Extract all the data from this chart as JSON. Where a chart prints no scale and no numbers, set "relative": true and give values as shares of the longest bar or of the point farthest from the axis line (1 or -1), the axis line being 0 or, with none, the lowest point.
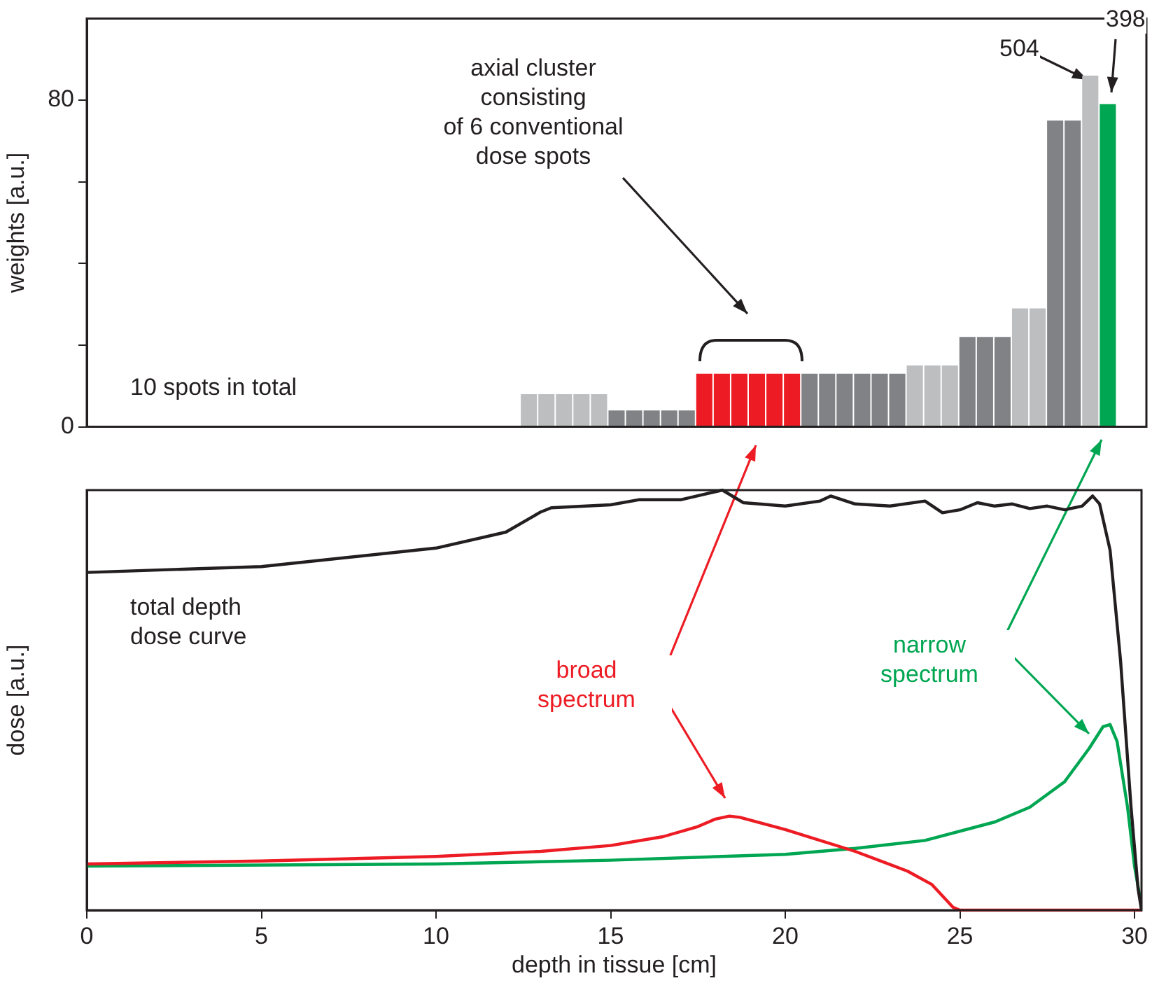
{
  "chart_data": [
    {
      "type": "bar",
      "ylabel": "weights [a.u.]",
      "x": [
        12.6,
        13.1,
        13.6,
        14.1,
        14.6,
        15.1,
        15.6,
        16.1,
        16.6,
        17.1,
        17.6,
        18.1,
        18.6,
        19.1,
        19.6,
        20.1,
        20.6,
        21.1,
        21.6,
        22.1,
        22.6,
        23.1,
        23.6,
        24.1,
        24.6,
        25.1,
        25.6,
        26.1,
        26.6,
        27.1,
        27.6,
        28.1,
        28.6,
        29.1
      ],
      "values": [
        8,
        8,
        8,
        8,
        8,
        4,
        4,
        4,
        4,
        4,
        13,
        13,
        13,
        13,
        13,
        13,
        13,
        13,
        13,
        13,
        13,
        13,
        15,
        15,
        15,
        22,
        22,
        22,
        29,
        29,
        75,
        75,
        86,
        79
      ],
      "colors": [
        "#bcbec0",
        "#bcbec0",
        "#bcbec0",
        "#bcbec0",
        "#bcbec0",
        "#808285",
        "#808285",
        "#808285",
        "#808285",
        "#808285",
        "#ed1c24",
        "#ed1c24",
        "#ed1c24",
        "#ed1c24",
        "#ed1c24",
        "#ed1c24",
        "#808285",
        "#808285",
        "#808285",
        "#808285",
        "#808285",
        "#808285",
        "#bcbec0",
        "#bcbec0",
        "#bcbec0",
        "#808285",
        "#808285",
        "#808285",
        "#bcbec0",
        "#bcbec0",
        "#808285",
        "#808285",
        "#bcbec0",
        "#00a651"
      ],
      "xlim": [
        0,
        30.2
      ],
      "ylim": [
        0,
        100
      ],
      "yticks": [
        0,
        {
          "value": 20,
          "label": null
        },
        {
          "value": 40,
          "label": null
        },
        {
          "value": 60,
          "label": null
        },
        80
      ],
      "tick_labels": "y",
      "annotations": [
        "axial cluster\nconsisting\nof 6 conventional\ndose spots",
        "10 spots in total",
        "504",
        "398"
      ]
    },
    {
      "type": "line",
      "xlabel": "depth in tissue [cm]",
      "ylabel": "dose [a.u.]",
      "relative": true,
      "xlim": [
        0,
        30.2
      ],
      "xticks": [
        0,
        5,
        10,
        15,
        20,
        25,
        30
      ],
      "marker": "none",
      "line_style": "solid",
      "series": [
        {
          "name": "total depth\ndose curve",
          "color": "#231f20",
          "x": [
            0,
            5,
            10,
            12,
            13,
            13.3,
            15,
            15.8,
            17,
            18.2,
            18.8,
            20,
            21,
            21.3,
            22,
            23,
            24,
            24.5,
            25,
            25.5,
            26,
            26.5,
            27,
            27.5,
            28,
            28.5,
            28.8,
            29,
            29.3,
            29.6,
            29.9,
            30.1,
            30.2
          ],
          "values": [
            0.804,
            0.818,
            0.862,
            0.9,
            0.948,
            0.958,
            0.965,
            0.977,
            0.977,
            1.0,
            0.97,
            0.962,
            0.974,
            0.986,
            0.967,
            0.962,
            0.974,
            0.946,
            0.953,
            0.97,
            0.962,
            0.967,
            0.956,
            0.962,
            0.953,
            0.962,
            0.986,
            0.967,
            0.857,
            0.594,
            0.245,
            0.052,
            0.0
          ]
        },
        {
          "name": "broad\nspectrum",
          "color": "#ed1c24",
          "x": [
            0,
            5,
            10,
            13,
            15,
            16.5,
            17.5,
            18,
            18.4,
            18.7,
            20,
            22,
            23.5,
            24.2,
            24.8,
            25,
            30.2
          ],
          "values": [
            0.11,
            0.117,
            0.128,
            0.14,
            0.154,
            0.175,
            0.199,
            0.217,
            0.224,
            0.221,
            0.192,
            0.14,
            0.093,
            0.061,
            0.007,
            0.0,
            0.0
          ]
        },
        {
          "name": "narrow\nspectrum",
          "color": "#00a651",
          "x": [
            0,
            10,
            15,
            20,
            22,
            24,
            26,
            27,
            28,
            28.7,
            29.1,
            29.3,
            29.5,
            29.8,
            30.0,
            30.2
          ],
          "values": [
            0.105,
            0.11,
            0.119,
            0.133,
            0.147,
            0.166,
            0.21,
            0.245,
            0.306,
            0.385,
            0.437,
            0.442,
            0.402,
            0.245,
            0.105,
            0.009
          ]
        }
      ]
    }
  ]
}
